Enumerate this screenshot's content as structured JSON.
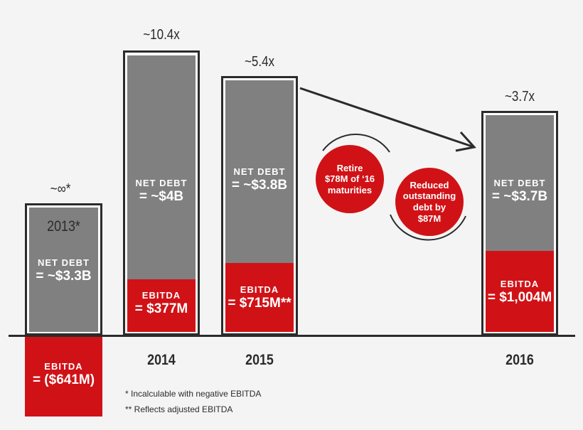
{
  "chart_data": {
    "type": "bar",
    "categories": [
      "2013",
      "2014",
      "2015",
      "2016"
    ],
    "series": [
      {
        "name": "NET DEBT",
        "labels": [
          "NET DEBT\n= ~$3.3B",
          "NET DEBT\n= ~$4B",
          "NET DEBT\n= ~$3.8B",
          "NET DEBT\n= ~$3.7B"
        ],
        "values": [
          3.3,
          4.0,
          3.8,
          3.7
        ],
        "unit": "$B"
      },
      {
        "name": "EBITDA",
        "labels": [
          "EBITDA\n= ($641M)",
          "EBITDA\n= $377M",
          "EBITDA\n= $715M**",
          "EBITDA\n= $1,004M"
        ],
        "values": [
          -641,
          377,
          715,
          1004
        ],
        "unit": "$M"
      }
    ],
    "multiples": [
      "~∞*",
      "~10.4x",
      "~5.4x",
      "~3.7x"
    ],
    "year_labels": [
      "2013*",
      "2014",
      "2015",
      "2016"
    ],
    "annotations": [
      "Retire\n$78M of ‘16\nmaturities",
      "Reduced\noutstanding\ndebt by\n$87M"
    ],
    "footnotes": [
      "* Incalculable with negative EBITDA",
      "** Reflects adjusted EBITDA"
    ],
    "colors": {
      "net_debt": "#808080",
      "ebitda": "#d01217",
      "outline": "#2b2b2b"
    }
  }
}
